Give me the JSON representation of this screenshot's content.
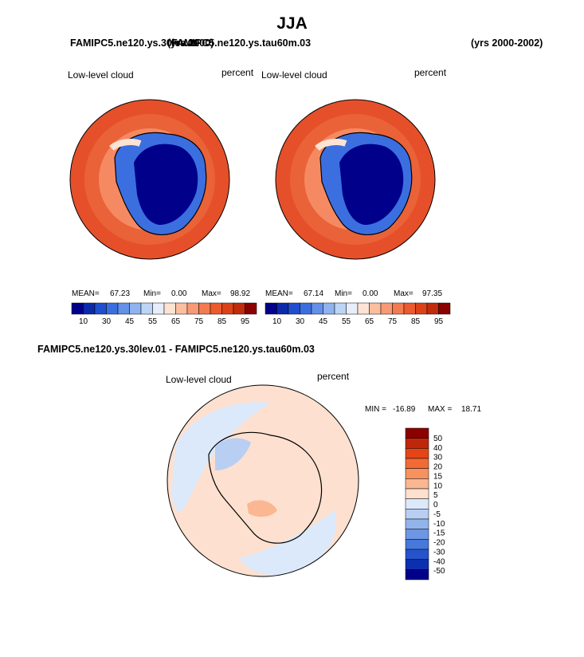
{
  "header": {
    "season": "JJA",
    "case_left": "FAMIPC5.ne120.ys.30lev.01",
    "case_right": "FAMIPC5.ne120.ys.tau60m.03",
    "years_left": "(yrs 2000)",
    "years_right": "(yrs 2000-2002)",
    "diff_title": "FAMIPC5.ne120.ys.30lev.01 - FAMIPC5.ne120.ys.tau60m.03"
  },
  "panels": [
    {
      "variable": "Low-level cloud",
      "units": "percent",
      "mean_label": "MEAN=",
      "mean": "67.23",
      "min_label": "Min=",
      "min": "0.00",
      "max_label": "Max=",
      "max": "98.92"
    },
    {
      "variable": "Low-level cloud",
      "units": "percent",
      "mean_label": "MEAN=",
      "mean": "67.14",
      "min_label": "Min=",
      "min": "0.00",
      "max_label": "Max=",
      "max": "97.35"
    }
  ],
  "diff_panel": {
    "variable": "Low-level cloud",
    "units": "percent",
    "min_label": "MIN =",
    "min": "-16.89",
    "max_label": "MAX =",
    "max": "18.71"
  },
  "colorbar_abs": {
    "tick_labels": [
      "10",
      "30",
      "45",
      "55",
      "65",
      "75",
      "85",
      "95"
    ],
    "colors": [
      "#00008b",
      "#0a2aaa",
      "#1f4fcf",
      "#3b6fe0",
      "#6390e8",
      "#8fb3f0",
      "#bcd4f6",
      "#e6eefb",
      "#fde3d3",
      "#fbbfa0",
      "#f89a75",
      "#f47a50",
      "#ec5a2e",
      "#dc4219",
      "#c02c0c",
      "#8b0000"
    ]
  },
  "colorbar_diff": {
    "tick_labels": [
      "50",
      "40",
      "30",
      "20",
      "15",
      "10",
      "5",
      "0",
      "-5",
      "-10",
      "-15",
      "-20",
      "-30",
      "-40",
      "-50"
    ],
    "colors": [
      "#8b0000",
      "#c0260a",
      "#e54516",
      "#f26a36",
      "#f7925e",
      "#fab791",
      "#fde0cf",
      "#dce9fb",
      "#b8cff3",
      "#92b3ec",
      "#6e96e4",
      "#4778db",
      "#2653cc",
      "#0c2fb0",
      "#00008b"
    ]
  },
  "chart_data": [
    {
      "type": "heatmap",
      "title": "JJA",
      "case": "FAMIPC5.ne120.ys.30lev.01",
      "years": "(yrs 2000)",
      "variable": "Low-level cloud",
      "units": "percent",
      "projection": "polar stereographic (Southern Hemisphere)",
      "stats": {
        "mean": 67.23,
        "min": 0.0,
        "max": 98.92
      },
      "levels": [
        10,
        30,
        45,
        55,
        65,
        75,
        85,
        95
      ]
    },
    {
      "type": "heatmap",
      "title": "JJA",
      "case": "FAMIPC5.ne120.ys.tau60m.03",
      "years": "(yrs 2000-2002)",
      "variable": "Low-level cloud",
      "units": "percent",
      "projection": "polar stereographic (Southern Hemisphere)",
      "stats": {
        "mean": 67.14,
        "min": 0.0,
        "max": 97.35
      },
      "levels": [
        10,
        30,
        45,
        55,
        65,
        75,
        85,
        95
      ]
    },
    {
      "type": "heatmap",
      "title": "FAMIPC5.ne120.ys.30lev.01 - FAMIPC5.ne120.ys.tau60m.03",
      "variable": "Low-level cloud",
      "units": "percent",
      "projection": "polar stereographic (Southern Hemisphere)",
      "stats": {
        "min": -16.89,
        "max": 18.71
      },
      "levels": [
        50,
        40,
        30,
        20,
        15,
        10,
        5,
        0,
        -5,
        -10,
        -15,
        -20,
        -30,
        -40,
        -50
      ]
    }
  ]
}
